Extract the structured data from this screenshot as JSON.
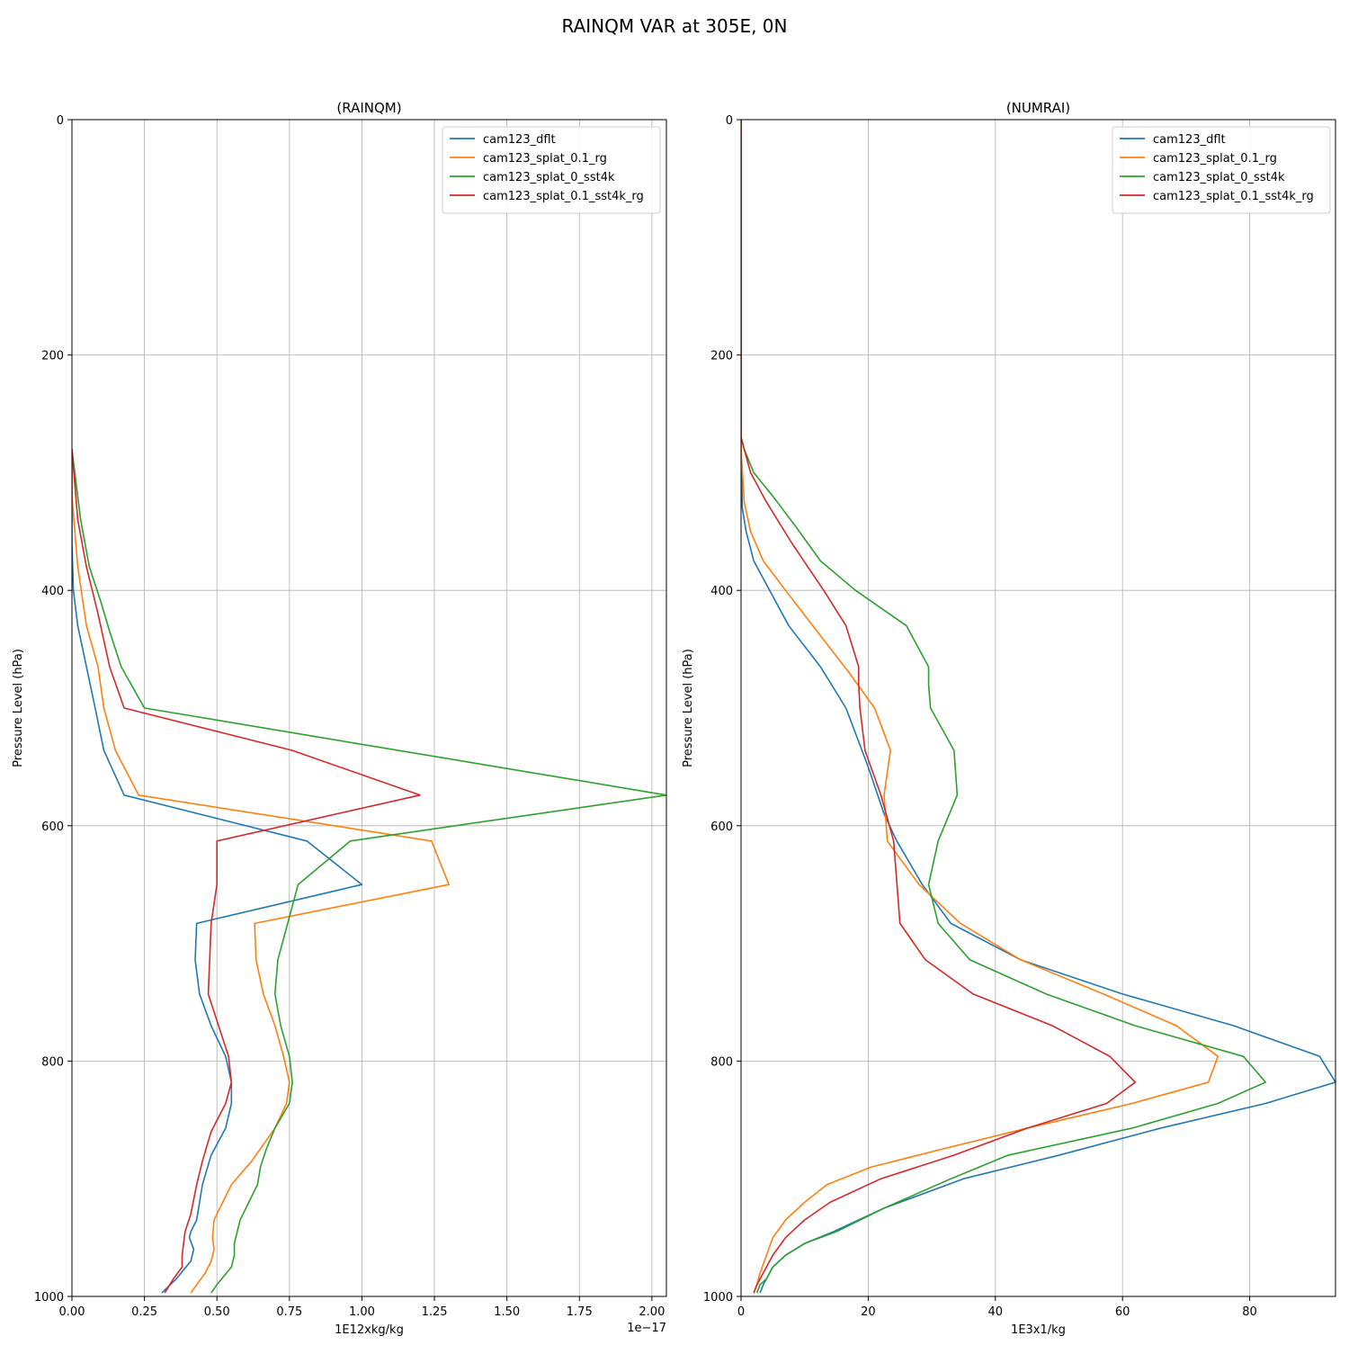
{
  "title": "RAINQM VAR at 305E, 0N",
  "colors": {
    "cam123_dflt": "#1f77b4",
    "cam123_splat_0.1_rg": "#ff7f0e",
    "cam123_splat_0_sst4k": "#2ca02c",
    "cam123_splat_0.1_sst4k_rg": "#d62728"
  },
  "chart_data": [
    {
      "type": "line",
      "title": "(RAINQM)",
      "xlabel": "1E12xkg/kg",
      "ylabel": "Pressure Level (hPa)",
      "x_offset_label": "1e−17",
      "xlim": [
        0,
        2.05
      ],
      "ylim": [
        1000,
        0
      ],
      "xticks": [
        0.0,
        0.25,
        0.5,
        0.75,
        1.0,
        1.25,
        1.5,
        1.75,
        2.0
      ],
      "xtick_labels": [
        "0.00",
        "0.25",
        "0.50",
        "0.75",
        "1.00",
        "1.25",
        "1.50",
        "1.75",
        "2.00"
      ],
      "yticks": [
        0,
        200,
        400,
        600,
        800,
        1000
      ],
      "ytick_labels": [
        "0",
        "200",
        "400",
        "600",
        "800",
        "1000"
      ],
      "grid": true,
      "legend": "top-right",
      "series": [
        {
          "name": "cam123_dflt",
          "x": [
            0,
            0,
            0.005,
            0.02,
            0.05,
            0.08,
            0.11,
            0.18,
            0.81,
            1.0,
            0.43,
            0.425,
            0.44,
            0.48,
            0.53,
            0.55,
            0.55,
            0.53,
            0.48,
            0.45,
            0.43,
            0.41,
            0.405,
            0.42,
            0.41,
            0.36,
            0.31
          ],
          "y": [
            280,
            360,
            400,
            430,
            465,
            500,
            536,
            574,
            613,
            650,
            683,
            714,
            743,
            770,
            796,
            818,
            836,
            857,
            880,
            905,
            935,
            945,
            950,
            960,
            970,
            985,
            997
          ]
        },
        {
          "name": "cam123_splat_0.1_rg",
          "x": [
            0,
            0,
            0.02,
            0.05,
            0.09,
            0.11,
            0.15,
            0.23,
            1.24,
            1.3,
            0.63,
            0.635,
            0.66,
            0.7,
            0.73,
            0.75,
            0.74,
            0.7,
            0.62,
            0.55,
            0.49,
            0.485,
            0.49,
            0.48,
            0.46,
            0.41
          ],
          "y": [
            280,
            320,
            380,
            430,
            465,
            500,
            536,
            574,
            613,
            650,
            683,
            714,
            743,
            770,
            796,
            818,
            836,
            857,
            885,
            905,
            935,
            950,
            960,
            970,
            980,
            997
          ]
        },
        {
          "name": "cam123_splat_0_sst4k",
          "x": [
            0,
            0.03,
            0.06,
            0.1,
            0.13,
            0.17,
            0.25,
            2.05,
            0.96,
            0.78,
            0.71,
            0.7,
            0.72,
            0.75,
            0.76,
            0.75,
            0.7,
            0.67,
            0.65,
            0.64,
            0.6,
            0.58,
            0.56,
            0.56,
            0.55,
            0.5,
            0.48
          ],
          "y": [
            280,
            340,
            380,
            410,
            435,
            465,
            500,
            574,
            613,
            650,
            714,
            743,
            770,
            796,
            818,
            836,
            857,
            875,
            890,
            905,
            925,
            935,
            955,
            965,
            975,
            990,
            997
          ]
        },
        {
          "name": "cam123_splat_0.1_sst4k_rg",
          "x": [
            0,
            0.02,
            0.05,
            0.09,
            0.13,
            0.18,
            0.76,
            1.2,
            0.5,
            0.5,
            0.48,
            0.475,
            0.47,
            0.54,
            0.55,
            0.53,
            0.48,
            0.45,
            0.43,
            0.41,
            0.39,
            0.38,
            0.38,
            0.35,
            0.32
          ],
          "y": [
            280,
            340,
            380,
            420,
            465,
            500,
            536,
            574,
            613,
            650,
            683,
            714,
            743,
            796,
            818,
            836,
            860,
            885,
            905,
            930,
            945,
            965,
            975,
            985,
            997
          ]
        }
      ]
    },
    {
      "type": "line",
      "title": "(NUMRAI)",
      "xlabel": "1E3x1/kg",
      "ylabel": "Pressure Level (hPa)",
      "xlim": [
        0,
        93.5
      ],
      "ylim": [
        1000,
        0
      ],
      "xticks": [
        0,
        20,
        40,
        60,
        80
      ],
      "xtick_labels": [
        "0",
        "20",
        "40",
        "60",
        "80"
      ],
      "yticks": [
        0,
        200,
        400,
        600,
        800,
        1000
      ],
      "ytick_labels": [
        "0",
        "200",
        "400",
        "600",
        "800",
        "1000"
      ],
      "grid": true,
      "legend": "top-right",
      "series": [
        {
          "name": "cam123_dflt",
          "x": [
            0,
            0,
            0.2,
            0.8,
            2,
            4.5,
            7.5,
            12.5,
            16.5,
            20,
            22.5,
            24.5,
            28.5,
            33,
            44,
            60,
            77.5,
            91,
            93.5,
            82.5,
            66,
            50,
            35,
            22.5,
            14.5,
            10,
            7,
            5,
            4,
            3.5,
            3
          ],
          "y": [
            0,
            280,
            330,
            350,
            375,
            400,
            430,
            465,
            500,
            550,
            590,
            613,
            650,
            683,
            714,
            743,
            770,
            796,
            818,
            836,
            857,
            880,
            900,
            925,
            945,
            955,
            965,
            975,
            985,
            990,
            997
          ]
        },
        {
          "name": "cam123_splat_0.1_rg",
          "x": [
            0,
            0,
            0.5,
            1.5,
            3.5,
            7,
            12,
            17,
            21,
            23.5,
            22.5,
            23,
            28,
            34.5,
            44,
            57,
            68.5,
            75,
            73.5,
            61.5,
            45,
            31.5,
            20.5,
            13.5,
            10,
            7,
            5,
            4,
            3,
            2.5,
            2
          ],
          "y": [
            0,
            280,
            325,
            350,
            375,
            400,
            435,
            470,
            500,
            536,
            574,
            613,
            650,
            683,
            714,
            743,
            770,
            796,
            818,
            836,
            857,
            875,
            890,
            905,
            920,
            935,
            950,
            965,
            980,
            990,
            997
          ]
        },
        {
          "name": "cam123_splat_0_sst4k",
          "x": [
            0,
            0,
            0.5,
            2,
            5,
            8.5,
            12.5,
            18,
            26,
            29.5,
            29.5,
            29.8,
            33.5,
            34,
            31,
            29.5,
            31,
            36,
            48,
            62,
            79,
            82.5,
            75,
            61.5,
            42,
            33,
            22.5,
            15,
            10,
            7,
            5,
            4,
            3,
            2.5
          ],
          "y": [
            0,
            270,
            280,
            300,
            320,
            345,
            375,
            400,
            430,
            465,
            480,
            500,
            536,
            574,
            613,
            650,
            683,
            714,
            743,
            770,
            796,
            818,
            836,
            857,
            880,
            900,
            925,
            945,
            955,
            965,
            975,
            985,
            990,
            997
          ]
        },
        {
          "name": "cam123_splat_0.1_sst4k_rg",
          "x": [
            0,
            0,
            0.5,
            1.5,
            4,
            8,
            13,
            16.5,
            18.5,
            18.5,
            18.7,
            19.5,
            22,
            24,
            25,
            29,
            36.5,
            49,
            58,
            62,
            57.5,
            45,
            33.5,
            22,
            14,
            10,
            7,
            5,
            4,
            3,
            2.5,
            2
          ],
          "y": [
            0,
            270,
            280,
            300,
            325,
            360,
            400,
            430,
            465,
            480,
            500,
            536,
            574,
            613,
            683,
            714,
            743,
            770,
            796,
            818,
            836,
            857,
            880,
            900,
            920,
            935,
            950,
            965,
            975,
            985,
            990,
            997
          ]
        }
      ]
    }
  ]
}
